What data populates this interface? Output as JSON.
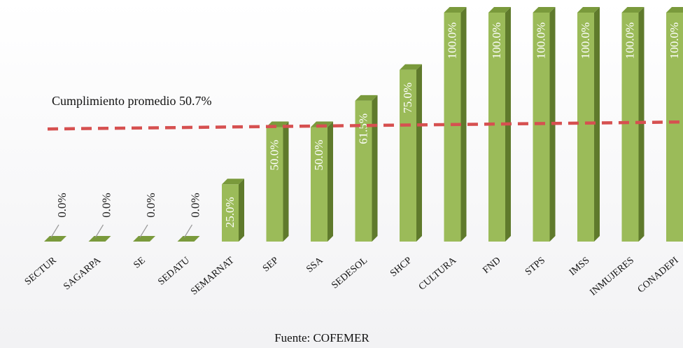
{
  "chart_data": {
    "type": "bar",
    "categories": [
      "SECTUR",
      "SAGARPA",
      "SE",
      "SEDATU",
      "SEMARNAT",
      "SEP",
      "SSA",
      "SEDESOL",
      "SHCP",
      "CULTURA",
      "FND",
      "STPS",
      "IMSS",
      "INMUJERES",
      "CONADEPI"
    ],
    "values": [
      0.0,
      0.0,
      0.0,
      0.0,
      25.0,
      50.0,
      50.0,
      61.5,
      75.0,
      100.0,
      100.0,
      100.0,
      100.0,
      100.0,
      100.0
    ],
    "value_labels": [
      "0.0%",
      "0.0%",
      "0.0%",
      "0.0%",
      "25.0%",
      "50.0%",
      "50.0%",
      "61.5%",
      "75.0%",
      "100.0%",
      "100.0%",
      "100.0%",
      "100.0%",
      "100.0%",
      "100.0%"
    ],
    "ylim": [
      0,
      100
    ],
    "grid": false,
    "average": {
      "value": 50.7,
      "label": "Cumplimiento promedio 50.7%"
    },
    "source": "Fuente: COFEMER",
    "colors": {
      "bar_front": "#9bbb59",
      "bar_side": "#5f7a2c",
      "bar_top": "#7a9a3c",
      "average_line": "#d65050"
    }
  }
}
